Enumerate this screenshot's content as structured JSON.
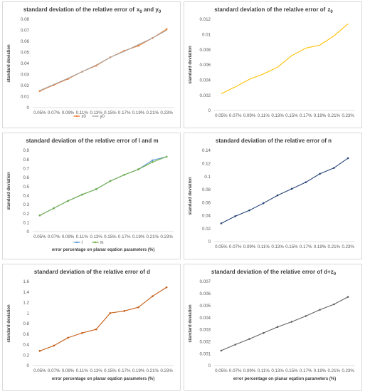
{
  "chart_data": [
    {
      "type": "line",
      "title": "standard deviation of the relative error of",
      "title_tail": [
        [
          "x",
          ""
        ],
        [
          "0",
          "sub"
        ],
        [
          " and y",
          ""
        ],
        [
          "0",
          "sub"
        ]
      ],
      "xlabel": "",
      "ylabel": "standard deviation",
      "categories": [
        "0.05%",
        "0.07%",
        "0.09%",
        "0.11%",
        "0.13%",
        "0.15%",
        "0.17%",
        "0.19%",
        "0.21%",
        "0.23%"
      ],
      "ylim": [
        0,
        0.08
      ],
      "yticks": [
        0,
        0.01,
        0.02,
        0.03,
        0.04,
        0.05,
        0.06,
        0.07,
        0.08
      ],
      "ytick_labels": [
        "0",
        "0.01",
        "0.02",
        "0.03",
        "0.04",
        "0.05",
        "0.06",
        "0.07",
        "0.08"
      ],
      "series": [
        {
          "name": "x0",
          "color": "#ED7D31",
          "marker": true,
          "values": [
            0.015,
            0.0205,
            0.026,
            0.0325,
            0.038,
            0.0455,
            0.0515,
            0.056,
            0.063,
            0.071
          ]
        },
        {
          "name": "y0",
          "color": "#A5A5A5",
          "marker": false,
          "values": [
            0.0155,
            0.021,
            0.0265,
            0.0325,
            0.0385,
            0.0455,
            0.051,
            0.057,
            0.063,
            0.07
          ]
        }
      ],
      "legend": "bottom",
      "grid": false
    },
    {
      "type": "line",
      "title": "standard deviation of the relative error of",
      "title_tail": [
        [
          "z",
          ""
        ],
        [
          "0",
          "sub"
        ]
      ],
      "xlabel": "",
      "ylabel": "standard deviation",
      "categories": [
        "0.05%",
        "0.07%",
        "0.09%",
        "0.11%",
        "0.13%",
        "0.15%",
        "0.17%",
        "0.19%",
        "0.21%",
        "0.23%"
      ],
      "ylim": [
        0,
        0.012
      ],
      "yticks": [
        0,
        0.002,
        0.004,
        0.006,
        0.008,
        0.01,
        0.012
      ],
      "ytick_labels": [
        "0",
        "0.002",
        "0.004",
        "0.006",
        "0.008",
        "0.01",
        "0.012"
      ],
      "series": [
        {
          "color": "#FFC000",
          "marker": false,
          "values": [
            0.0022,
            0.0031,
            0.0041,
            0.0048,
            0.0057,
            0.0072,
            0.0082,
            0.0086,
            0.0098,
            0.0114
          ]
        }
      ],
      "grid": false
    },
    {
      "type": "line",
      "title": "standard deviation of the relative error of l and m",
      "title_tail": [],
      "xlabel": "error percentage on planar eqation parameters (%)",
      "ylabel": "standard deviation",
      "categories": [
        "0.05%",
        "0.07%",
        "0.09%",
        "0.11%",
        "0.13%",
        "0.15%",
        "0.17%",
        "0.19%",
        "0.21%",
        "0.23%"
      ],
      "ylim": [
        0,
        0.9
      ],
      "yticks": [
        0,
        0.1,
        0.2,
        0.3,
        0.4,
        0.5,
        0.6,
        0.7,
        0.8,
        0.9
      ],
      "ytick_labels": [
        "0",
        "0.1",
        "0.2",
        "0.3",
        "0.4",
        "0.5",
        "0.6",
        "0.7",
        "0.8",
        "0.9"
      ],
      "series": [
        {
          "name": "l",
          "color": "#5B9BD5",
          "marker": true,
          "values": [
            0.18,
            0.26,
            0.34,
            0.41,
            0.47,
            0.56,
            0.63,
            0.69,
            0.79,
            0.83
          ]
        },
        {
          "name": "m",
          "color": "#70AD47",
          "marker": true,
          "values": [
            0.18,
            0.26,
            0.34,
            0.41,
            0.47,
            0.56,
            0.63,
            0.69,
            0.77,
            0.83
          ]
        }
      ],
      "legend": "bottom",
      "grid": false
    },
    {
      "type": "line",
      "title": "standard deviation of the relative error of n",
      "title_tail": [],
      "xlabel": "",
      "ylabel": "standard deviation",
      "categories": [
        "0.05%",
        "0.07%",
        "0.09%",
        "0.11%",
        "0.13%",
        "0.15%",
        "0.17%",
        "0.19%",
        "0.21%",
        "0.23%"
      ],
      "ylim": [
        0,
        0.14
      ],
      "yticks": [
        0,
        0.02,
        0.04,
        0.06,
        0.08,
        0.1,
        0.12,
        0.14
      ],
      "ytick_labels": [
        "0",
        "0.02",
        "0.04",
        "0.06",
        "0.08",
        "0.1",
        "0.12",
        "0.14"
      ],
      "series": [
        {
          "color": "#264478",
          "marker": true,
          "values": [
            0.028,
            0.039,
            0.048,
            0.059,
            0.071,
            0.081,
            0.091,
            0.104,
            0.113,
            0.128
          ]
        }
      ],
      "grid": false
    },
    {
      "type": "line",
      "title": "standard deviation of the relative error of d",
      "title_tail": [],
      "xlabel": "error percentage on planar eqation parameters (%)",
      "ylabel": "standard deviation",
      "categories": [
        "0.05%",
        "0.07%",
        "0.09%",
        "0.11%",
        "0.13%",
        "0.15%",
        "0.17%",
        "0.19%",
        "0.21%",
        "0.23%"
      ],
      "ylim": [
        0,
        1.6
      ],
      "yticks": [
        0,
        0.2,
        0.4,
        0.6,
        0.8,
        1,
        1.2,
        1.4,
        1.6
      ],
      "ytick_labels": [
        "0",
        "0.2",
        "0.4",
        "0.6",
        "0.8",
        "1",
        "1.2",
        "1.4",
        "1.6"
      ],
      "series": [
        {
          "color": "#C55A11",
          "marker": true,
          "values": [
            0.28,
            0.38,
            0.53,
            0.62,
            0.69,
            1.0,
            1.04,
            1.11,
            1.32,
            1.49
          ]
        }
      ],
      "grid": false
    },
    {
      "type": "line",
      "title": "standard deviation of the relative error of d+z",
      "title_tail": [
        [
          "0",
          "sub"
        ]
      ],
      "xlabel": "error percentage on planar eqation parameters (%)",
      "ylabel": "standard deviation",
      "categories": [
        "0.05%",
        "0.07%",
        "0.09%",
        "0.11%",
        "0.13%",
        "0.15%",
        "0.17%",
        "0.19%",
        "0.21%",
        "0.23%"
      ],
      "ylim": [
        0,
        0.007
      ],
      "yticks": [
        0,
        0.001,
        0.002,
        0.003,
        0.004,
        0.005,
        0.006,
        0.007
      ],
      "ytick_labels": [
        "0",
        "0.001",
        "0.002",
        "0.003",
        "0.004",
        "0.005",
        "0.006",
        "0.007"
      ],
      "series": [
        {
          "color": "#636363",
          "marker": true,
          "values": [
            0.00125,
            0.00175,
            0.00222,
            0.00272,
            0.00322,
            0.00365,
            0.00412,
            0.00465,
            0.0051,
            0.00572
          ]
        }
      ],
      "grid": false
    }
  ]
}
